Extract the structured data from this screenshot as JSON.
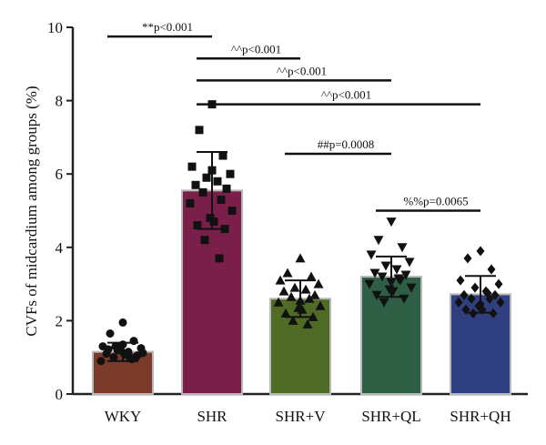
{
  "chart_data": {
    "type": "bar",
    "ylabel": "CVFs of midcardium among groups (%)",
    "ylim": [
      0,
      10
    ],
    "yticks": [
      0,
      2,
      4,
      6,
      8,
      10
    ],
    "categories": [
      "WKY",
      "SHR",
      "SHR+V",
      "SHR+QL",
      "SHR+QH"
    ],
    "values": [
      1.15,
      5.55,
      2.6,
      3.2,
      2.72
    ],
    "sd": [
      0.25,
      1.05,
      0.5,
      0.55,
      0.5
    ],
    "bar_colors": [
      "#7a3b2a",
      "#7a1f4a",
      "#4f6b25",
      "#2e5f45",
      "#2f3f7f"
    ],
    "marker_shapes": [
      "circle",
      "square",
      "triangle",
      "triangle-down",
      "diamond"
    ],
    "points": [
      [
        1.95,
        1.65,
        1.45,
        1.3,
        1.25,
        1.2,
        1.15,
        1.1,
        1.05,
        1.0,
        0.95,
        0.9,
        1.12,
        1.18,
        1.08,
        1.22,
        1.0,
        1.3,
        0.98,
        1.35
      ],
      [
        7.9,
        7.2,
        6.5,
        6.2,
        6.0,
        5.9,
        5.8,
        5.7,
        5.6,
        5.5,
        5.3,
        5.2,
        5.0,
        4.8,
        4.7,
        4.6,
        4.5,
        4.2,
        3.7,
        6.1
      ],
      [
        3.7,
        3.3,
        3.2,
        3.1,
        3.0,
        2.9,
        2.85,
        2.8,
        2.7,
        2.65,
        2.6,
        2.5,
        2.4,
        2.35,
        2.3,
        2.2,
        2.1,
        2.0,
        1.9,
        2.55
      ],
      [
        4.7,
        4.2,
        4.0,
        3.8,
        3.6,
        3.5,
        3.4,
        3.3,
        3.25,
        3.2,
        3.1,
        3.0,
        2.9,
        2.85,
        2.8,
        2.7,
        2.6,
        2.5,
        3.15,
        3.05
      ],
      [
        3.9,
        3.7,
        3.4,
        3.1,
        3.0,
        2.9,
        2.8,
        2.7,
        2.7,
        2.6,
        2.6,
        2.5,
        2.5,
        2.4,
        2.3,
        2.3,
        2.2,
        2.2,
        2.75,
        2.45
      ]
    ],
    "comparisons": [
      {
        "from": 0,
        "to": 1,
        "y": 9.75,
        "label": "**p<0.001"
      },
      {
        "from": 1,
        "to": 2,
        "y": 9.15,
        "label": "^^p<0.001"
      },
      {
        "from": 1,
        "to": 3,
        "y": 8.55,
        "label": "^^p<0.001"
      },
      {
        "from": 1,
        "to": 4,
        "y": 7.9,
        "label": "^^p<0.001"
      },
      {
        "from": 2,
        "to": 3,
        "y": 6.55,
        "label": "##p=0.0008"
      },
      {
        "from": 3,
        "to": 4,
        "y": 5.0,
        "label": "%%p=0.0065"
      }
    ]
  }
}
